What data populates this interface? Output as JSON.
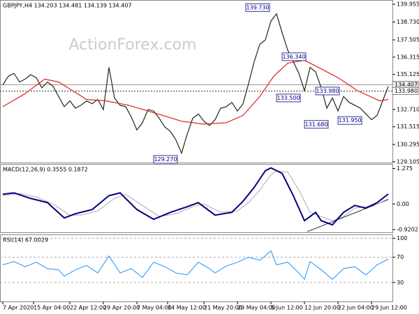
{
  "chart_data": [
    {
      "type": "line",
      "title": "GBPJPY,H4 134.203 134.481 134.139 134.407",
      "watermark": "ActionForex.com",
      "xlim": [
        -0.5,
        69.75
      ],
      "ylim": [
        129.05,
        140.25
      ],
      "yticks": [
        139.955,
        {
          "value": 138.73,
          "label": "138.730"
        },
        137.505,
        136.315,
        135.125,
        {
          "value": 132.71,
          "label": "132.710"
        },
        131.515,
        130.295,
        129.105
      ],
      "levels": [
        {
          "value": 134.407,
          "label": "134.407",
          "style": "solid"
        },
        {
          "value": 133.98,
          "label": "133.980",
          "style": "dashed"
        }
      ],
      "annotations": [
        {
          "x": 48,
          "value": 139.73,
          "label": "139.730"
        },
        {
          "x": 54.5,
          "value": 136.34,
          "label": "136.340"
        },
        {
          "x": 53.5,
          "value": 133.5,
          "label": "133.500"
        },
        {
          "x": 60.5,
          "value": 133.98,
          "label": "133.980"
        },
        {
          "x": 58.5,
          "value": 131.68,
          "label": "131.680"
        },
        {
          "x": 64.5,
          "value": 131.95,
          "label": "131.950"
        },
        {
          "x": 31.5,
          "value": 129.27,
          "label": "129.270"
        }
      ],
      "series": [
        {
          "color": "#1a2a1a",
          "width": 1.2,
          "x": [
            0,
            1,
            2,
            3,
            4,
            5,
            6,
            7,
            8,
            9,
            10,
            11,
            12,
            13,
            14,
            15,
            16,
            17,
            18,
            19,
            20,
            21,
            22,
            23,
            24,
            25,
            26,
            27,
            28,
            29,
            30,
            31,
            32,
            33,
            34,
            35,
            36,
            37,
            38,
            39,
            40,
            41,
            42,
            43,
            44,
            45,
            46,
            47,
            48,
            49,
            50,
            51,
            52,
            53,
            54,
            55,
            56,
            57,
            58,
            59,
            60,
            61,
            62,
            63,
            64,
            65,
            66,
            67,
            68,
            69
          ],
          "values": [
            134.4,
            135.0,
            135.2,
            134.6,
            134.8,
            135.1,
            134.9,
            134.2,
            134.6,
            134.3,
            133.6,
            132.9,
            133.3,
            132.8,
            133.0,
            133.3,
            133.1,
            133.4,
            132.7,
            135.6,
            133.5,
            133.0,
            132.9,
            132.2,
            131.3,
            131.8,
            132.7,
            132.6,
            132.1,
            131.5,
            131.2,
            130.6,
            129.7,
            131.0,
            132.1,
            132.4,
            131.9,
            131.6,
            132.0,
            132.8,
            132.9,
            133.2,
            132.6,
            133.1,
            134.5,
            136.0,
            137.2,
            137.5,
            138.8,
            139.3,
            138.0,
            136.8,
            136.0,
            135.2,
            134.0,
            135.6,
            135.3,
            134.2,
            132.8,
            133.5,
            132.6,
            133.6,
            133.2,
            133.0,
            132.8,
            132.4,
            132.0,
            132.3,
            133.3,
            134.3
          ]
        },
        {
          "color": "#e02020",
          "width": 1.2,
          "x": [
            0,
            4,
            7.5,
            10,
            15,
            18.5,
            22.5,
            26,
            32,
            36,
            40,
            43,
            46,
            48.5,
            51,
            54,
            56.5,
            60,
            63.5,
            67.5,
            69
          ],
          "values": [
            132.9,
            133.8,
            134.8,
            134.6,
            133.4,
            133.3,
            133.0,
            132.6,
            131.9,
            131.7,
            131.8,
            132.3,
            133.6,
            135.0,
            135.9,
            136.1,
            135.6,
            134.9,
            134.0,
            133.3,
            133.4
          ]
        }
      ]
    },
    {
      "type": "line",
      "title": "MACD(12,26,9) 0.3555 0.1872",
      "xlim": [
        -0.5,
        69.75
      ],
      "ylim": [
        -1.02,
        1.44
      ],
      "yticks": [
        1.275,
        {
          "value": 0,
          "label": "0.00"
        },
        -0.9202
      ],
      "series": [
        {
          "color": "#aaaaaa",
          "width": 1,
          "x": [
            0,
            3,
            6,
            9,
            12,
            14,
            17,
            20,
            22,
            25,
            28,
            31,
            34,
            36,
            39,
            42,
            44,
            46,
            48,
            49,
            51,
            53,
            55,
            57,
            59,
            61,
            63,
            65,
            67,
            69
          ],
          "values": [
            0.3,
            0.38,
            0.25,
            0.0,
            -0.4,
            -0.4,
            -0.25,
            0.2,
            0.35,
            -0.05,
            -0.45,
            -0.35,
            -0.1,
            0.0,
            -0.3,
            -0.25,
            0.05,
            0.5,
            1.05,
            1.2,
            1.15,
            0.5,
            -0.3,
            -0.45,
            -0.6,
            -0.45,
            -0.15,
            -0.1,
            0.0,
            0.19
          ]
        },
        {
          "color": "#000080",
          "width": 2,
          "x": [
            0,
            2,
            5,
            8,
            11,
            13,
            16,
            19,
            21,
            24,
            27,
            30,
            33,
            35,
            38,
            41,
            43,
            45,
            47,
            48,
            50,
            52,
            54,
            56,
            57,
            59,
            61,
            63,
            65,
            67,
            69
          ],
          "values": [
            0.35,
            0.4,
            0.2,
            0.05,
            -0.5,
            -0.35,
            -0.2,
            0.3,
            0.4,
            -0.2,
            -0.55,
            -0.3,
            -0.1,
            0.05,
            -0.4,
            -0.3,
            0.1,
            0.6,
            1.2,
            1.3,
            1.1,
            0.3,
            -0.6,
            -0.3,
            -0.6,
            -0.75,
            -0.3,
            -0.05,
            -0.15,
            0.05,
            0.36
          ]
        }
      ]
    },
    {
      "type": "line",
      "title": "RSI(14) 67.0029",
      "xlim": [
        -0.5,
        69.75
      ],
      "ylim": [
        0,
        106
      ],
      "grid": true,
      "yticks": [
        100,
        70,
        30
      ],
      "xticks": [
        {
          "value": 0,
          "label": "7 Apr 2020"
        },
        {
          "value": 5.5,
          "label": "15 Apr 04:00"
        },
        {
          "value": 12,
          "label": "22 Apr 12:00"
        },
        {
          "value": 18,
          "label": "29 Apr 20:00"
        },
        {
          "value": 24,
          "label": "7 May 04:00"
        },
        {
          "value": 29.5,
          "label": "14 May 12:00"
        },
        {
          "value": 36,
          "label": "21 May 20:00"
        },
        {
          "value": 42,
          "label": "29 May 04:00"
        },
        {
          "value": 48,
          "label": "5 Jun 12:00"
        },
        {
          "value": 54,
          "label": "12 Jun 20:00"
        },
        {
          "value": 60,
          "label": "22 Jun 04:00"
        },
        {
          "value": 66,
          "label": "29 Jun 12:00"
        }
      ],
      "series": [
        {
          "color": "#1e90ff",
          "width": 1,
          "x": [
            0,
            2,
            4,
            6,
            8,
            10,
            11,
            13,
            15,
            17,
            19,
            21,
            23,
            25,
            27,
            29,
            31,
            33,
            35,
            37,
            38,
            40,
            42,
            44,
            46,
            48,
            49,
            51,
            53,
            54,
            55,
            57,
            59,
            61,
            63,
            65,
            67,
            69
          ],
          "values": [
            58,
            63,
            55,
            62,
            52,
            50,
            40,
            50,
            57,
            45,
            72,
            45,
            52,
            38,
            62,
            55,
            45,
            42,
            62,
            52,
            45,
            56,
            62,
            70,
            65,
            80,
            58,
            62,
            45,
            35,
            63,
            50,
            35,
            52,
            55,
            42,
            58,
            67
          ]
        }
      ]
    }
  ]
}
